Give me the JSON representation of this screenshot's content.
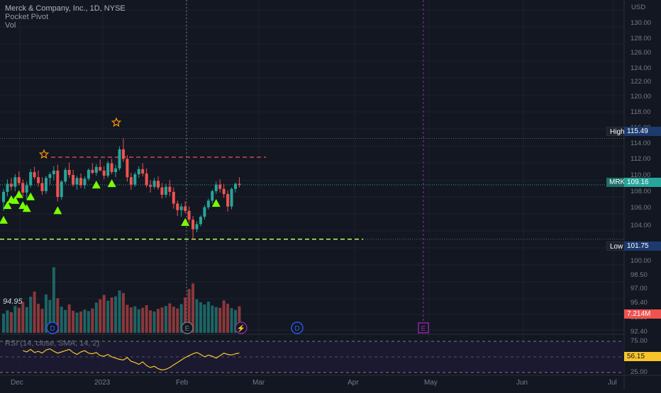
{
  "legend": {
    "title": "Merck & Company, Inc., 1D, NYSE",
    "line2": "Pocket Pivot",
    "line3": "Vol"
  },
  "rsi_label": "RSI (14, close, SMA, 14, 2)",
  "volume_label": "94.95",
  "markers": {
    "dividend": "D",
    "earnings": "E",
    "split": "⚡"
  },
  "labels": {
    "high": {
      "text": "High",
      "value": "115.49"
    },
    "low": {
      "text": "Low",
      "value": "101.75"
    },
    "last": {
      "text": "MRK",
      "value": "109.16"
    },
    "volume": "7.214M",
    "rsi": "56.15"
  },
  "colors": {
    "background": "#131722",
    "up": "#26a69a",
    "down": "#ef5350",
    "pivot": "#76ff03",
    "star": "#ff9800",
    "rsi": "#f7c52b",
    "earnings": "#9c27b0",
    "dividend": "#2962ff"
  },
  "chart_data": {
    "type": "candlestick",
    "y_axis": {
      "unit": "USD",
      "ticks": [
        "130.00",
        "128.00",
        "126.00",
        "124.00",
        "122.00",
        "120.00",
        "118.00",
        "116.00",
        "114.00",
        "112.00",
        "110.00",
        "108.00",
        "106.00",
        "104.00",
        "102.00",
        "100.00",
        "98.50",
        "97.00",
        "95.40",
        "93.80",
        "92.40"
      ]
    },
    "x_axis": {
      "ticks": [
        "Dec",
        "2023",
        "Feb",
        "Mar",
        "Apr",
        "May",
        "Jun",
        "Jul"
      ]
    },
    "ohlc": [
      [
        106.8,
        108.6,
        105.6,
        108.2
      ],
      [
        108.2,
        109.9,
        107.6,
        109.3
      ],
      [
        109.3,
        110.1,
        108.4,
        108.9
      ],
      [
        108.9,
        110.6,
        108.3,
        110.2
      ],
      [
        110.2,
        111.0,
        109.1,
        109.4
      ],
      [
        109.4,
        109.9,
        107.6,
        108.1
      ],
      [
        108.1,
        109.6,
        107.2,
        109.1
      ],
      [
        109.1,
        111.3,
        108.8,
        110.9
      ],
      [
        110.9,
        111.6,
        109.9,
        110.2
      ],
      [
        110.2,
        111.1,
        108.9,
        109.4
      ],
      [
        109.4,
        110.2,
        107.8,
        108.3
      ],
      [
        108.3,
        110.4,
        107.9,
        110.1
      ],
      [
        110.1,
        110.9,
        109.2,
        110.6
      ],
      [
        110.6,
        111.7,
        109.8,
        111.1
      ],
      [
        111.1,
        111.9,
        106.9,
        107.5
      ],
      [
        107.5,
        109.8,
        107.1,
        109.6
      ],
      [
        109.6,
        111.5,
        109.3,
        111.2
      ],
      [
        111.2,
        112.2,
        110.1,
        110.5
      ],
      [
        110.5,
        111.2,
        108.9,
        109.2
      ],
      [
        109.2,
        110.4,
        108.5,
        110.1
      ],
      [
        110.1,
        110.7,
        108.7,
        109.1
      ],
      [
        109.1,
        110.3,
        108.6,
        110.0
      ],
      [
        110.0,
        111.4,
        109.7,
        111.2
      ],
      [
        111.2,
        112.1,
        110.6,
        110.8
      ],
      [
        110.8,
        112.0,
        110.4,
        111.6
      ],
      [
        111.6,
        112.6,
        111.0,
        111.1
      ],
      [
        111.1,
        111.7,
        109.9,
        110.4
      ],
      [
        110.4,
        112.4,
        110.1,
        112.1
      ],
      [
        112.1,
        112.7,
        110.6,
        110.9
      ],
      [
        110.9,
        111.9,
        110.2,
        111.4
      ],
      [
        111.4,
        114.4,
        111.1,
        114.0
      ],
      [
        114.0,
        115.5,
        112.3,
        112.7
      ],
      [
        112.7,
        113.2,
        109.6,
        110.2
      ],
      [
        110.2,
        110.8,
        108.5,
        109.2
      ],
      [
        109.2,
        110.9,
        108.9,
        110.6
      ],
      [
        110.6,
        111.7,
        110.1,
        111.3
      ],
      [
        111.3,
        112.1,
        110.3,
        110.7
      ],
      [
        110.7,
        111.4,
        108.8,
        109.1
      ],
      [
        109.1,
        109.8,
        108.1,
        108.9
      ],
      [
        108.9,
        110.1,
        108.6,
        109.7
      ],
      [
        109.7,
        110.3,
        108.5,
        108.8
      ],
      [
        108.8,
        109.4,
        107.3,
        107.8
      ],
      [
        107.8,
        109.3,
        107.4,
        108.9
      ],
      [
        108.9,
        109.8,
        107.6,
        108.2
      ],
      [
        108.2,
        108.8,
        105.9,
        106.6
      ],
      [
        106.6,
        107.0,
        104.9,
        105.7
      ],
      [
        105.7,
        106.6,
        104.8,
        106.2
      ],
      [
        106.2,
        106.9,
        105.3,
        105.6
      ],
      [
        105.6,
        106.2,
        103.9,
        104.4
      ],
      [
        104.4,
        104.9,
        101.75,
        103.1
      ],
      [
        103.1,
        104.2,
        102.7,
        103.8
      ],
      [
        103.8,
        105.0,
        103.5,
        104.8
      ],
      [
        104.8,
        106.4,
        104.4,
        106.1
      ],
      [
        106.1,
        107.3,
        105.8,
        107.0
      ],
      [
        107.0,
        108.5,
        106.6,
        108.3
      ],
      [
        108.3,
        109.6,
        107.9,
        109.2
      ],
      [
        109.2,
        109.9,
        108.1,
        108.6
      ],
      [
        108.6,
        109.3,
        107.4,
        107.9
      ],
      [
        107.9,
        108.4,
        105.5,
        106.2
      ],
      [
        106.2,
        108.8,
        105.8,
        108.6
      ],
      [
        108.6,
        109.5,
        108.1,
        109.3
      ],
      [
        109.3,
        110.2,
        108.8,
        109.16
      ]
    ],
    "volume": [
      5.2,
      6.1,
      5.6,
      7.3,
      6.8,
      8.4,
      7.0,
      9.8,
      11.2,
      7.9,
      6.5,
      10.4,
      8.9,
      17.8,
      9.4,
      7.1,
      6.2,
      7.7,
      6.0,
      5.5,
      5.8,
      6.3,
      5.9,
      6.6,
      8.2,
      9.1,
      10.3,
      8.7,
      9.6,
      9.9,
      11.5,
      10.8,
      7.6,
      6.9,
      7.2,
      6.4,
      6.8,
      7.5,
      6.1,
      5.8,
      6.5,
      6.9,
      7.3,
      8.0,
      7.1,
      6.6,
      7.8,
      9.6,
      11.9,
      13.4,
      9.1,
      8.3,
      7.7,
      8.5,
      7.4,
      7.0,
      6.8,
      8.8,
      7.9,
      6.7,
      6.2,
      7.214
    ],
    "rsi": [
      60,
      58,
      62,
      57,
      59,
      56,
      61,
      63,
      59,
      56,
      58,
      60,
      62,
      57,
      54,
      58,
      60,
      56,
      55,
      57,
      52,
      51,
      54,
      50,
      48,
      46,
      45,
      49,
      43,
      41,
      38,
      42,
      36,
      33,
      35,
      31,
      29,
      30,
      33,
      37,
      41,
      45,
      49,
      52,
      55,
      57,
      54,
      50,
      53,
      51,
      48,
      52,
      56,
      54,
      53,
      55,
      56.15
    ],
    "pivot_triangles_index": [
      0,
      1,
      2,
      3,
      4,
      5,
      6,
      7,
      14,
      24,
      28,
      47,
      55
    ],
    "high": 115.49,
    "low": 101.75,
    "last": 109.16
  }
}
